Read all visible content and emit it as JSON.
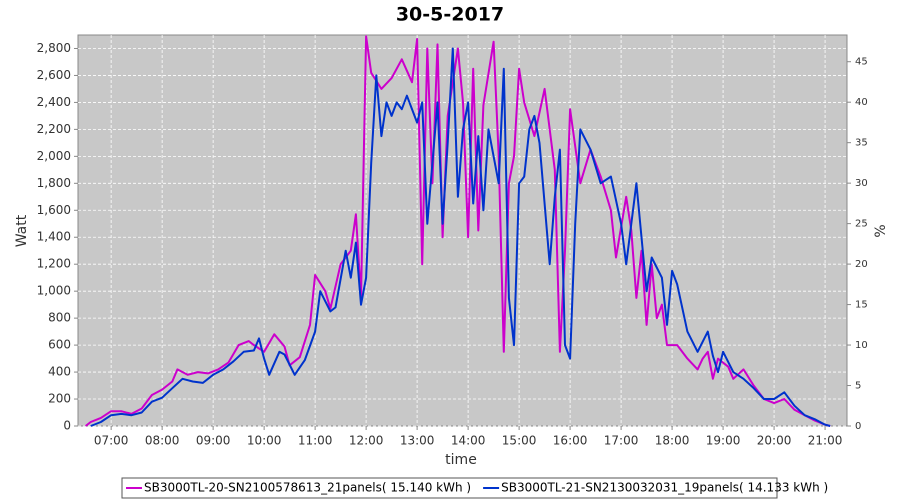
{
  "chart_data": {
    "type": "line",
    "title": "30-5-2017",
    "xlabel": "time",
    "ylabel": "Watt",
    "y2label": "%",
    "xlim": [
      6.35,
      21.43
    ],
    "ylim": [
      0,
      2900
    ],
    "y2lim": [
      0,
      48.3
    ],
    "grid": true,
    "background": "#c8c8c8",
    "legend": "bottom",
    "xticks": [
      {
        "value": 7,
        "label": "07:00"
      },
      {
        "value": 8,
        "label": "08:00"
      },
      {
        "value": 9,
        "label": "09:00"
      },
      {
        "value": 10,
        "label": "10:00"
      },
      {
        "value": 11,
        "label": "11:00"
      },
      {
        "value": 12,
        "label": "12:00"
      },
      {
        "value": 13,
        "label": "13:00"
      },
      {
        "value": 14,
        "label": "14:00"
      },
      {
        "value": 15,
        "label": "15:00"
      },
      {
        "value": 16,
        "label": "16:00"
      },
      {
        "value": 17,
        "label": "17:00"
      },
      {
        "value": 18,
        "label": "18:00"
      },
      {
        "value": 19,
        "label": "19:00"
      },
      {
        "value": 20,
        "label": "20:00"
      },
      {
        "value": 21,
        "label": "21:00"
      }
    ],
    "yticks": [
      0,
      200,
      400,
      600,
      800,
      {
        "value": 1000,
        "label": "1,000"
      },
      {
        "value": 1200,
        "label": "1,200"
      },
      {
        "value": 1400,
        "label": "1,400"
      },
      {
        "value": 1600,
        "label": "1,600"
      },
      {
        "value": 1800,
        "label": "1,800"
      },
      {
        "value": 2000,
        "label": "2,000"
      },
      {
        "value": 2200,
        "label": "2,200"
      },
      {
        "value": 2400,
        "label": "2,400"
      },
      {
        "value": 2600,
        "label": "2,600"
      },
      {
        "value": 2800,
        "label": "2,800"
      }
    ],
    "y2ticks": [
      0,
      5,
      10,
      15,
      20,
      25,
      30,
      35,
      40,
      45
    ],
    "series": [
      {
        "name": "SB3000TL-20-SN2100578613_21panels( 15.140 kWh )",
        "color": "#cc00cc",
        "x": [
          6.5,
          6.6,
          6.8,
          7.0,
          7.2,
          7.4,
          7.6,
          7.8,
          8.0,
          8.2,
          8.3,
          8.5,
          8.7,
          8.9,
          9.1,
          9.3,
          9.5,
          9.7,
          9.8,
          10.0,
          10.2,
          10.4,
          10.5,
          10.7,
          10.9,
          11.0,
          11.2,
          11.3,
          11.5,
          11.6,
          11.7,
          11.8,
          11.9,
          12.0,
          12.1,
          12.3,
          12.5,
          12.7,
          12.9,
          13.0,
          13.1,
          13.2,
          13.3,
          13.4,
          13.5,
          13.6,
          13.8,
          13.9,
          14.0,
          14.1,
          14.2,
          14.3,
          14.5,
          14.6,
          14.7,
          14.8,
          14.9,
          15.0,
          15.1,
          15.3,
          15.5,
          15.6,
          15.7,
          15.8,
          15.9,
          16.0,
          16.2,
          16.4,
          16.6,
          16.8,
          16.9,
          17.1,
          17.2,
          17.3,
          17.4,
          17.5,
          17.6,
          17.7,
          17.8,
          17.9,
          18.1,
          18.3,
          18.5,
          18.6,
          18.7,
          18.8,
          18.9,
          19.1,
          19.2,
          19.4,
          19.6,
          19.8,
          20.0,
          20.2,
          20.4,
          20.6,
          20.8,
          21.0,
          21.1
        ],
        "values": [
          0,
          30,
          60,
          110,
          110,
          90,
          130,
          230,
          270,
          330,
          420,
          380,
          400,
          390,
          420,
          470,
          600,
          630,
          600,
          550,
          680,
          590,
          450,
          510,
          750,
          1120,
          1000,
          870,
          1200,
          1250,
          1300,
          1570,
          950,
          2890,
          2620,
          2500,
          2580,
          2720,
          2550,
          2870,
          1200,
          2800,
          1800,
          2830,
          1400,
          2300,
          2800,
          2400,
          1400,
          2650,
          1450,
          2380,
          2850,
          2000,
          550,
          1800,
          2000,
          2650,
          2400,
          2150,
          2500,
          2200,
          1900,
          550,
          1300,
          2350,
          1800,
          2050,
          1850,
          1600,
          1250,
          1700,
          1450,
          950,
          1300,
          750,
          1200,
          800,
          900,
          600,
          600,
          500,
          420,
          500,
          550,
          350,
          500,
          440,
          350,
          420,
          300,
          200,
          170,
          200,
          120,
          80,
          40,
          10,
          0
        ]
      },
      {
        "name": "SB3000TL-21-SN2130032031_19panels( 14.133 kWh )",
        "color": "#0033cc",
        "x": [
          6.6,
          6.8,
          7.0,
          7.2,
          7.4,
          7.6,
          7.8,
          8.0,
          8.2,
          8.4,
          8.6,
          8.8,
          9.0,
          9.2,
          9.4,
          9.6,
          9.8,
          9.9,
          10.0,
          10.1,
          10.3,
          10.4,
          10.6,
          10.8,
          11.0,
          11.1,
          11.3,
          11.4,
          11.6,
          11.7,
          11.8,
          11.9,
          12.0,
          12.1,
          12.2,
          12.3,
          12.4,
          12.5,
          12.6,
          12.7,
          12.8,
          13.0,
          13.1,
          13.2,
          13.4,
          13.5,
          13.6,
          13.7,
          13.8,
          13.9,
          14.0,
          14.1,
          14.2,
          14.3,
          14.4,
          14.5,
          14.6,
          14.7,
          14.8,
          14.9,
          15.0,
          15.1,
          15.2,
          15.3,
          15.4,
          15.6,
          15.7,
          15.8,
          15.9,
          16.0,
          16.1,
          16.2,
          16.4,
          16.6,
          16.8,
          17.0,
          17.1,
          17.3,
          17.5,
          17.6,
          17.8,
          17.9,
          18.0,
          18.1,
          18.3,
          18.5,
          18.7,
          18.8,
          18.9,
          19.0,
          19.2,
          19.4,
          19.6,
          19.8,
          20.0,
          20.2,
          20.4,
          20.6,
          20.8,
          21.0,
          21.1
        ],
        "values": [
          0,
          30,
          80,
          90,
          80,
          100,
          180,
          210,
          280,
          350,
          330,
          320,
          380,
          420,
          480,
          550,
          560,
          650,
          500,
          380,
          550,
          530,
          380,
          490,
          700,
          1000,
          850,
          880,
          1300,
          1100,
          1360,
          900,
          1100,
          1950,
          2600,
          2150,
          2400,
          2300,
          2400,
          2350,
          2450,
          2250,
          2400,
          1500,
          2400,
          1500,
          2100,
          2800,
          1700,
          2200,
          2400,
          1650,
          2150,
          1600,
          2200,
          2000,
          1800,
          2650,
          950,
          600,
          1800,
          1850,
          2200,
          2300,
          2100,
          1200,
          1700,
          2050,
          600,
          500,
          1500,
          2200,
          2050,
          1800,
          1850,
          1500,
          1200,
          1800,
          1000,
          1250,
          1100,
          750,
          1150,
          1050,
          700,
          550,
          700,
          520,
          400,
          550,
          400,
          350,
          280,
          200,
          200,
          250,
          150,
          80,
          50,
          10,
          0
        ]
      }
    ]
  }
}
